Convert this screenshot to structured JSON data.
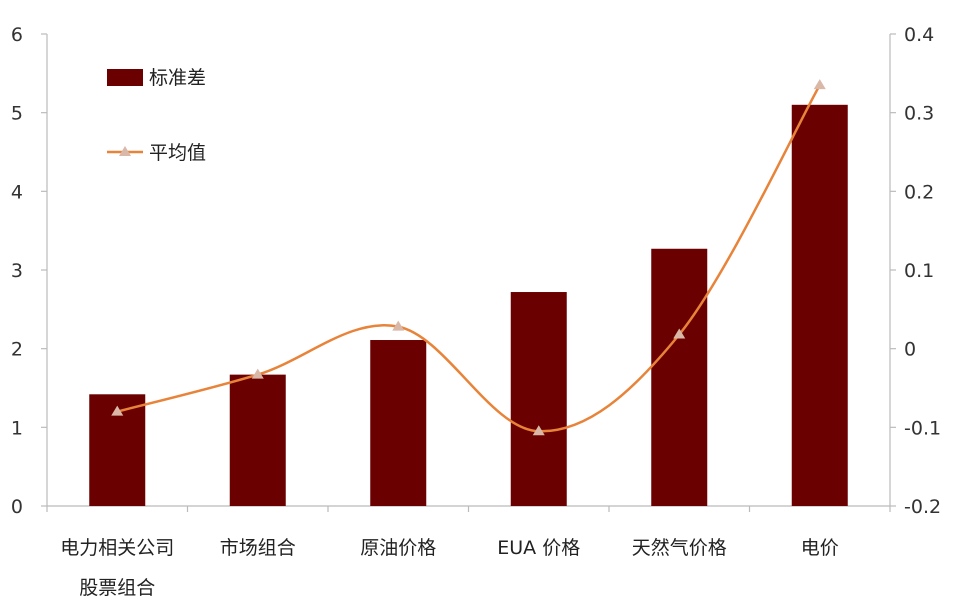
{
  "chart_data": {
    "type": "bar",
    "categories": [
      [
        "电力相关公司",
        "股票组合"
      ],
      [
        "市场组合"
      ],
      [
        "原油价格"
      ],
      [
        "EUA 价格"
      ],
      [
        "天然气价格"
      ],
      [
        "电价"
      ]
    ],
    "series": [
      {
        "name": "标准差",
        "type": "bar",
        "axis": "left",
        "color": "#6b0000",
        "values": [
          1.42,
          1.67,
          2.11,
          2.72,
          3.27,
          5.1
        ]
      },
      {
        "name": "平均值",
        "type": "line",
        "axis": "right",
        "color": "#e8833a",
        "marker_color": "#d9b8a8",
        "smooth": true,
        "values": [
          -0.08,
          -0.033,
          0.028,
          -0.105,
          0.018,
          0.335
        ]
      }
    ],
    "left_axis": {
      "ylim": [
        0,
        6
      ],
      "ticks": [
        "0",
        "1",
        "2",
        "3",
        "4",
        "5",
        "6"
      ]
    },
    "right_axis": {
      "ylim": [
        -0.2,
        0.4
      ],
      "ticks": [
        "-0.2",
        "-0.1",
        "0",
        "0.1",
        "0.2",
        "0.3",
        "0.4"
      ]
    },
    "legend": {
      "placement": "top-left",
      "items": [
        "标准差",
        "平均值"
      ]
    },
    "grid": false
  }
}
